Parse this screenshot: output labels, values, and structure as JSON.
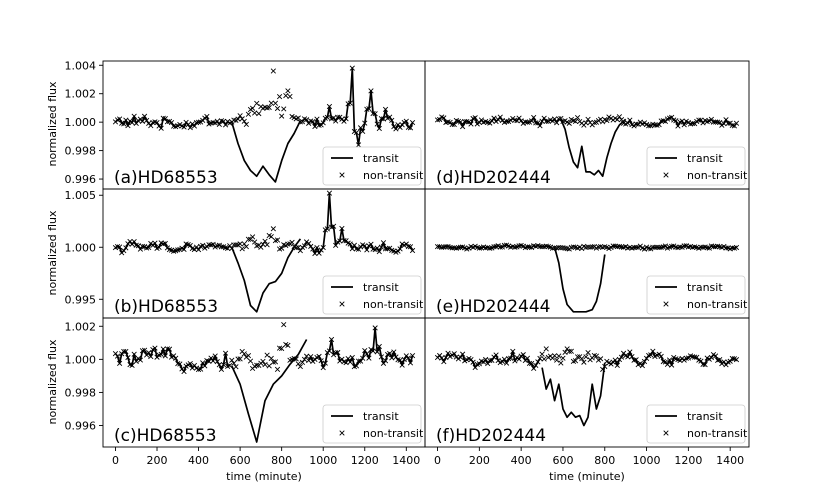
{
  "chart_data": {
    "type": "line",
    "x_axis_label": "time (minute)",
    "y_axis_label": "normalized flux",
    "xlim": [
      -60,
      1490
    ],
    "x_ticks": [
      0,
      200,
      400,
      600,
      800,
      1000,
      1200,
      1400
    ],
    "legend": {
      "placement": "lower-right",
      "entries": [
        "transit",
        "non-transit"
      ]
    },
    "panels": [
      {
        "id": "a",
        "label": "(a)HD68553",
        "ylim": [
          0.9953,
          1.0043
        ],
        "y_ticks": [
          0.996,
          0.998,
          1.0,
          1.002,
          1.004
        ],
        "y_tick_labels": [
          "0.996",
          "0.998",
          "1.000",
          "1.002",
          "1.004"
        ],
        "transit_x": [
          560,
          590,
          620,
          650,
          680,
          710,
          740,
          770,
          800,
          830,
          860,
          890
        ],
        "transit_y": [
          1.0,
          0.9985,
          0.9973,
          0.9966,
          0.9962,
          0.9969,
          0.9963,
          0.9958,
          0.9973,
          0.9985,
          0.9992,
          1.0001
        ]
      },
      {
        "id": "b",
        "label": "(b)HD68553",
        "ylim": [
          0.9932,
          1.0056
        ],
        "y_ticks": [
          0.995,
          1.0,
          1.005
        ],
        "y_tick_labels": [
          "0.995",
          "1.000",
          "1.005"
        ],
        "transit_x": [
          560,
          590,
          620,
          650,
          680,
          710,
          740,
          770,
          800,
          830,
          860,
          890
        ],
        "transit_y": [
          1.0,
          0.9985,
          0.9968,
          0.9944,
          0.9938,
          0.9956,
          0.9965,
          0.9967,
          0.9975,
          0.999,
          1.0,
          1.0008
        ]
      },
      {
        "id": "c",
        "label": "(c)HD68553",
        "ylim": [
          0.9947,
          1.0025
        ],
        "y_ticks": [
          0.996,
          0.998,
          1.0,
          1.002
        ],
        "y_tick_labels": [
          "0.996",
          "0.998",
          "1.000",
          "1.002"
        ],
        "transit_x": [
          560,
          600,
          640,
          680,
          720,
          760,
          800,
          840,
          880,
          920
        ],
        "transit_y": [
          0.9996,
          0.9985,
          0.9967,
          0.995,
          0.9975,
          0.9985,
          0.999,
          0.9997,
          1.0003,
          1.0012
        ]
      },
      {
        "id": "d",
        "label": "(d)HD202444",
        "ylim": [
          0.9953,
          1.0043
        ],
        "y_ticks": [],
        "y_tick_labels": [],
        "transit_x": [
          590,
          610,
          630,
          650,
          670,
          690,
          710,
          730,
          750,
          770,
          790,
          810,
          830,
          850,
          870,
          900
        ],
        "transit_y": [
          1.0002,
          0.9995,
          0.9982,
          0.9972,
          0.9968,
          0.9983,
          0.9965,
          0.9965,
          0.9963,
          0.9966,
          0.9962,
          0.9975,
          0.9985,
          0.9993,
          0.9998,
          1.0002
        ]
      },
      {
        "id": "e",
        "label": "(e)HD202444",
        "ylim": [
          0.9932,
          1.0056
        ],
        "y_ticks": [],
        "y_tick_labels": [],
        "transit_x": [
          560,
          580,
          600,
          620,
          650,
          680,
          710,
          740,
          760,
          780,
          800
        ],
        "transit_y": [
          1.0,
          0.9985,
          0.996,
          0.9945,
          0.9938,
          0.9938,
          0.9938,
          0.994,
          0.9948,
          0.9965,
          0.9993
        ]
      },
      {
        "id": "f",
        "label": "(f)HD202444",
        "ylim": [
          0.9947,
          1.0025
        ],
        "y_ticks": [],
        "y_tick_labels": [],
        "transit_x": [
          500,
          520,
          540,
          560,
          580,
          600,
          620,
          640,
          660,
          680,
          700,
          720,
          740,
          760,
          780,
          800
        ],
        "transit_y": [
          0.9995,
          0.9982,
          0.9988,
          0.9975,
          0.9985,
          0.997,
          0.9965,
          0.9968,
          0.9965,
          0.9966,
          0.996,
          0.9965,
          0.9985,
          0.997,
          0.9978,
          0.9998
        ]
      }
    ]
  }
}
